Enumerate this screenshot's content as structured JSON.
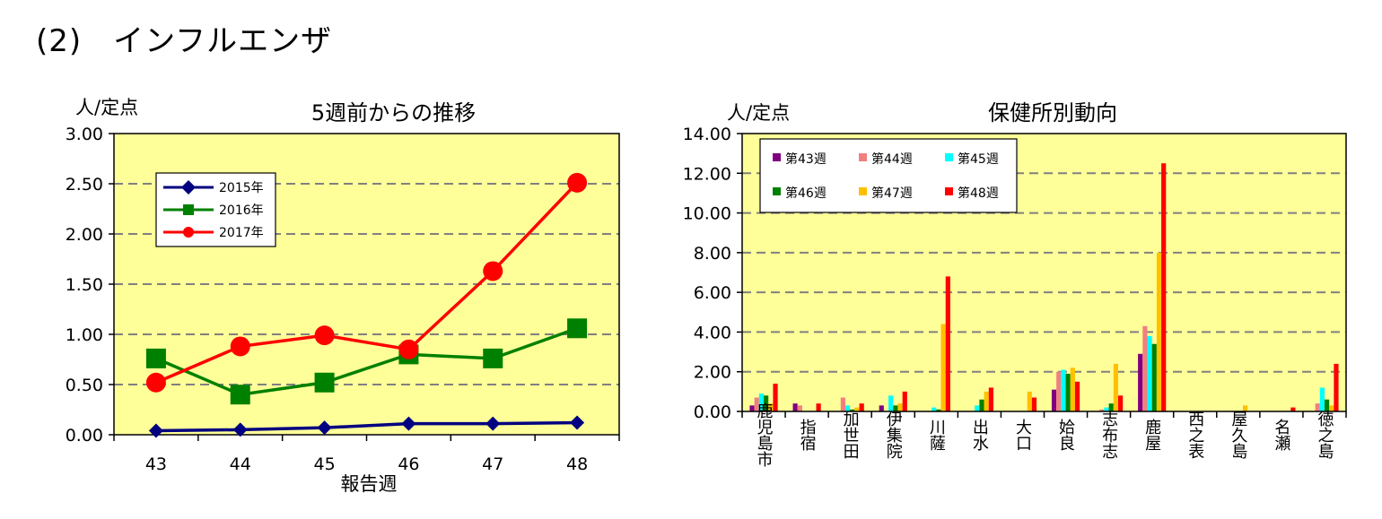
{
  "page_title": "(2)　インフルエンザ",
  "chart_data": [
    {
      "type": "line",
      "title": "5週前からの推移",
      "ylabel": "人/定点",
      "xlabel": "報告週",
      "categories": [
        "43",
        "44",
        "45",
        "46",
        "47",
        "48"
      ],
      "ylim": [
        0,
        3
      ],
      "yticks": [
        "0.00",
        "0.50",
        "1.00",
        "1.50",
        "2.00",
        "2.50",
        "3.00"
      ],
      "grid": true,
      "legend_position": "top-left",
      "series": [
        {
          "name": "2015年",
          "values": [
            0.04,
            0.05,
            0.07,
            0.11,
            0.11,
            0.12
          ],
          "color": "#000080",
          "marker": "diamond"
        },
        {
          "name": "2016年",
          "values": [
            0.76,
            0.4,
            0.52,
            0.8,
            0.76,
            1.06
          ],
          "color": "#008000",
          "marker": "square"
        },
        {
          "name": "2017年",
          "values": [
            0.52,
            0.88,
            0.99,
            0.85,
            1.63,
            2.51
          ],
          "color": "#ff0000",
          "marker": "circle"
        }
      ]
    },
    {
      "type": "bar",
      "title": "保健所別動向",
      "ylabel": "人/定点",
      "categories": [
        "鹿児島市",
        "指宿",
        "加世田",
        "伊集院",
        "川薩",
        "出水",
        "大口",
        "姶良",
        "志布志",
        "鹿屋",
        "西之表",
        "屋久島",
        "名瀬",
        "徳之島"
      ],
      "ylim": [
        0,
        14
      ],
      "yticks": [
        "0.00",
        "2.00",
        "4.00",
        "6.00",
        "8.00",
        "10.00",
        "12.00",
        "14.00"
      ],
      "grid": true,
      "legend_position": "top-left",
      "series": [
        {
          "name": "第43週",
          "color": "#800080",
          "values": [
            0.3,
            0.4,
            0.0,
            0.3,
            0.0,
            0.0,
            0.0,
            1.1,
            0.0,
            2.9,
            0.0,
            0.0,
            0.0,
            0.0
          ]
        },
        {
          "name": "第44週",
          "color": "#f08080",
          "values": [
            0.7,
            0.3,
            0.7,
            0.0,
            0.0,
            0.0,
            0.0,
            2.0,
            0.1,
            4.3,
            0.0,
            0.0,
            0.0,
            0.4
          ]
        },
        {
          "name": "第45週",
          "color": "#00ffff",
          "values": [
            0.9,
            0.0,
            0.3,
            0.8,
            0.2,
            0.3,
            0.0,
            2.1,
            0.2,
            3.8,
            0.0,
            0.0,
            0.0,
            1.2
          ]
        },
        {
          "name": "第46週",
          "color": "#008000",
          "values": [
            0.8,
            0.0,
            0.1,
            0.3,
            0.1,
            0.6,
            0.0,
            1.9,
            0.4,
            3.4,
            0.0,
            0.0,
            0.0,
            0.6
          ]
        },
        {
          "name": "第47週",
          "color": "#ffc000",
          "values": [
            0.4,
            0.0,
            0.2,
            0.4,
            4.4,
            1.0,
            1.0,
            2.2,
            2.4,
            8.0,
            0.0,
            0.3,
            0.0,
            0.3
          ]
        },
        {
          "name": "第48週",
          "color": "#ff0000",
          "values": [
            1.4,
            0.4,
            0.4,
            1.0,
            6.8,
            1.2,
            0.7,
            1.5,
            0.8,
            12.5,
            0.0,
            0.0,
            0.2,
            2.4
          ]
        }
      ]
    }
  ]
}
